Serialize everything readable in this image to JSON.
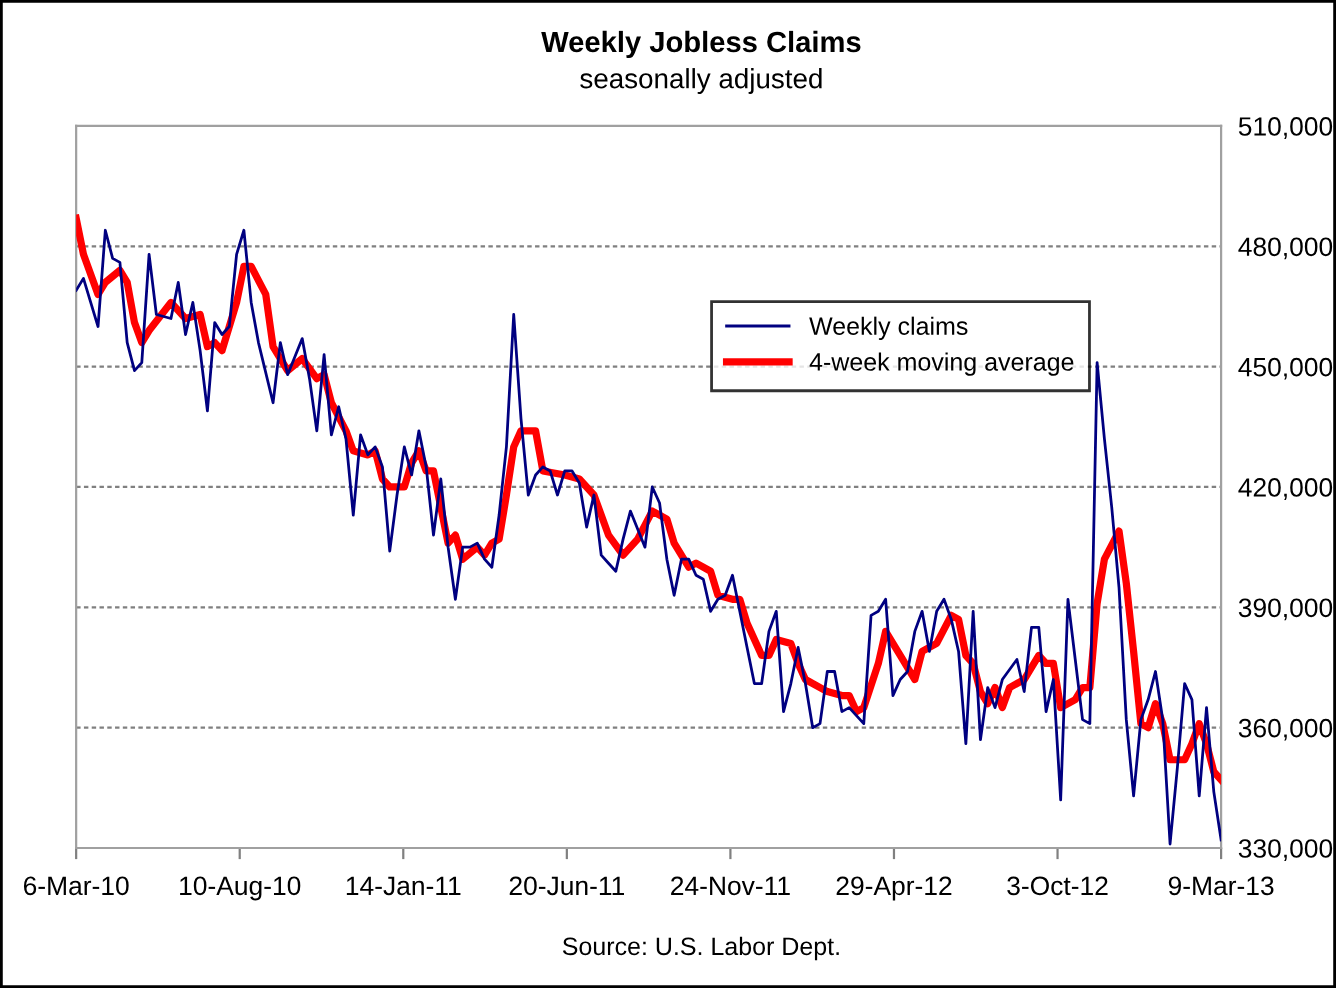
{
  "chart_data": {
    "type": "line",
    "title": "Weekly Jobless Claims",
    "subtitle": "seasonally adjusted",
    "annotations": [
      "Source: U.S. Labor Dept."
    ],
    "xlim": [
      "2010-03-06",
      "2013-03-09"
    ],
    "xticks": [
      {
        "value": "2010-03-06",
        "label": "6-Mar-10"
      },
      {
        "value": "2010-08-10",
        "label": "10-Aug-10"
      },
      {
        "value": "2011-01-14",
        "label": "14-Jan-11"
      },
      {
        "value": "2011-06-20",
        "label": "20-Jun-11"
      },
      {
        "value": "2011-11-24",
        "label": "24-Nov-11"
      },
      {
        "value": "2012-04-29",
        "label": "29-Apr-12"
      },
      {
        "value": "2012-10-03",
        "label": "3-Oct-12"
      },
      {
        "value": "2013-03-09",
        "label": "9-Mar-13"
      }
    ],
    "ylim": [
      330000,
      510000
    ],
    "yticks": [
      {
        "value": 330000,
        "label": "330,000"
      },
      {
        "value": 360000,
        "label": "360,000"
      },
      {
        "value": 390000,
        "label": "390,000"
      },
      {
        "value": 420000,
        "label": "420,000"
      },
      {
        "value": 450000,
        "label": "450,000"
      },
      {
        "value": 480000,
        "label": "480,000"
      },
      {
        "value": 510000,
        "label": "510,000"
      }
    ],
    "grid": "y",
    "legend": "center right",
    "marker": "none",
    "line_style": "solid",
    "series": [
      {
        "name": "Weekly claims",
        "color": "#000080",
        "x": [
          "2010-03-06",
          "2010-03-13",
          "2010-03-27",
          "2010-04-03",
          "2010-04-10",
          "2010-04-17",
          "2010-04-24",
          "2010-05-01",
          "2010-05-08",
          "2010-05-15",
          "2010-05-22",
          "2010-06-05",
          "2010-06-12",
          "2010-06-19",
          "2010-06-26",
          "2010-07-03",
          "2010-07-10",
          "2010-07-17",
          "2010-07-24",
          "2010-07-31",
          "2010-08-07",
          "2010-08-14",
          "2010-08-21",
          "2010-08-28",
          "2010-09-11",
          "2010-09-18",
          "2010-09-25",
          "2010-10-09",
          "2010-10-16",
          "2010-10-23",
          "2010-10-30",
          "2010-11-06",
          "2010-11-13",
          "2010-11-20",
          "2010-11-27",
          "2010-12-04",
          "2010-12-11",
          "2010-12-18",
          "2010-12-25",
          "2011-01-01",
          "2011-01-08",
          "2011-01-15",
          "2011-01-22",
          "2011-01-29",
          "2011-02-05",
          "2011-02-12",
          "2011-02-19",
          "2011-02-26",
          "2011-03-05",
          "2011-03-12",
          "2011-03-19",
          "2011-03-26",
          "2011-04-02",
          "2011-04-09",
          "2011-04-16",
          "2011-04-23",
          "2011-04-30",
          "2011-05-07",
          "2011-05-14",
          "2011-05-21",
          "2011-05-28",
          "2011-06-04",
          "2011-06-11",
          "2011-06-18",
          "2011-06-25",
          "2011-07-02",
          "2011-07-09",
          "2011-07-16",
          "2011-07-23",
          "2011-07-30",
          "2011-08-06",
          "2011-08-13",
          "2011-08-20",
          "2011-09-03",
          "2011-09-10",
          "2011-09-17",
          "2011-09-24",
          "2011-10-01",
          "2011-10-08",
          "2011-10-15",
          "2011-10-22",
          "2011-10-29",
          "2011-11-05",
          "2011-11-12",
          "2011-11-19",
          "2011-11-26",
          "2011-12-03",
          "2011-12-10",
          "2011-12-17",
          "2011-12-24",
          "2011-12-31",
          "2012-01-07",
          "2012-01-14",
          "2012-01-21",
          "2012-01-28",
          "2012-02-04",
          "2012-02-11",
          "2012-02-18",
          "2012-02-25",
          "2012-03-03",
          "2012-03-10",
          "2012-03-17",
          "2012-03-24",
          "2012-03-31",
          "2012-04-07",
          "2012-04-14",
          "2012-04-21",
          "2012-04-28",
          "2012-05-05",
          "2012-05-12",
          "2012-05-19",
          "2012-05-26",
          "2012-06-02",
          "2012-06-09",
          "2012-06-16",
          "2012-06-23",
          "2012-06-30",
          "2012-07-07",
          "2012-07-14",
          "2012-07-21",
          "2012-07-28",
          "2012-08-04",
          "2012-08-11",
          "2012-08-25",
          "2012-09-01",
          "2012-09-08",
          "2012-09-15",
          "2012-09-22",
          "2012-09-29",
          "2012-10-06",
          "2012-10-13",
          "2012-10-20",
          "2012-10-27",
          "2012-11-03",
          "2012-11-10",
          "2012-11-17",
          "2012-11-24",
          "2012-12-01",
          "2012-12-08",
          "2012-12-15",
          "2012-12-22",
          "2012-12-29",
          "2013-01-05",
          "2013-01-12",
          "2013-01-19",
          "2013-01-26",
          "2013-02-02",
          "2013-02-09",
          "2013-02-16",
          "2013-02-23",
          "2013-03-02",
          "2013-03-09"
        ],
        "values": [
          469000,
          472000,
          460000,
          484000,
          477000,
          476000,
          456000,
          449000,
          451000,
          478000,
          463000,
          462000,
          471000,
          458000,
          466000,
          454000,
          439000,
          461000,
          458000,
          460000,
          478000,
          484000,
          466000,
          456000,
          441000,
          456000,
          448000,
          457000,
          447000,
          434000,
          453000,
          433000,
          440000,
          432000,
          413000,
          433000,
          428000,
          430000,
          425000,
          404000,
          418000,
          430000,
          423000,
          434000,
          425000,
          408000,
          422000,
          405000,
          392000,
          405000,
          405000,
          406000,
          402000,
          400000,
          413000,
          430000,
          463000,
          437000,
          418000,
          423000,
          425000,
          424000,
          418000,
          424000,
          424000,
          421000,
          410000,
          418000,
          403000,
          401000,
          399000,
          407000,
          414000,
          405000,
          420000,
          416000,
          402000,
          393000,
          402000,
          402000,
          398000,
          397000,
          389000,
          392000,
          393000,
          398000,
          389000,
          380000,
          371000,
          371000,
          384000,
          389000,
          364000,
          371000,
          380000,
          371000,
          360000,
          361000,
          374000,
          374000,
          364000,
          365000,
          363000,
          361000,
          388000,
          389000,
          392000,
          368000,
          372000,
          374000,
          384000,
          389000,
          379000,
          389000,
          392000,
          387000,
          379000,
          356000,
          389000,
          357000,
          370000,
          365000,
          372000,
          377000,
          369000,
          385000,
          385000,
          364000,
          372000,
          342000,
          392000,
          377000,
          362000,
          361000,
          451000,
          432000,
          415000,
          395000,
          362000,
          343000,
          362000,
          367000,
          374000,
          362000,
          331000,
          350000,
          371000,
          367000,
          343000,
          365000,
          344000,
          332000
        ]
      },
      {
        "name": "4-week moving average",
        "color": "#ff0000",
        "x": [
          "2010-03-06",
          "2010-03-13",
          "2010-03-27",
          "2010-04-03",
          "2010-04-17",
          "2010-04-24",
          "2010-05-01",
          "2010-05-08",
          "2010-05-15",
          "2010-06-05",
          "2010-06-19",
          "2010-07-03",
          "2010-07-10",
          "2010-07-17",
          "2010-07-24",
          "2010-08-07",
          "2010-08-14",
          "2010-08-21",
          "2010-09-04",
          "2010-09-11",
          "2010-09-25",
          "2010-10-09",
          "2010-10-23",
          "2010-10-30",
          "2010-11-06",
          "2010-11-20",
          "2010-11-27",
          "2010-12-11",
          "2010-12-18",
          "2010-12-25",
          "2011-01-01",
          "2011-01-15",
          "2011-01-22",
          "2011-01-29",
          "2011-02-05",
          "2011-02-12",
          "2011-02-19",
          "2011-02-26",
          "2011-03-05",
          "2011-03-12",
          "2011-03-26",
          "2011-04-02",
          "2011-04-09",
          "2011-04-16",
          "2011-04-23",
          "2011-04-30",
          "2011-05-07",
          "2011-05-21",
          "2011-05-28",
          "2011-06-18",
          "2011-07-02",
          "2011-07-16",
          "2011-07-30",
          "2011-08-13",
          "2011-08-27",
          "2011-09-10",
          "2011-09-24",
          "2011-10-01",
          "2011-10-15",
          "2011-10-22",
          "2011-11-05",
          "2011-11-12",
          "2011-11-26",
          "2011-12-03",
          "2011-12-10",
          "2011-12-24",
          "2011-12-31",
          "2012-01-07",
          "2012-01-21",
          "2012-01-28",
          "2012-02-04",
          "2012-02-25",
          "2012-03-10",
          "2012-03-17",
          "2012-03-24",
          "2012-03-31",
          "2012-04-14",
          "2012-04-21",
          "2012-05-05",
          "2012-05-19",
          "2012-05-26",
          "2012-06-09",
          "2012-06-23",
          "2012-06-30",
          "2012-07-07",
          "2012-07-14",
          "2012-07-21",
          "2012-07-28",
          "2012-08-04",
          "2012-08-11",
          "2012-08-18",
          "2012-09-01",
          "2012-09-15",
          "2012-09-22",
          "2012-09-29",
          "2012-10-06",
          "2012-10-20",
          "2012-10-27",
          "2012-11-03",
          "2012-11-10",
          "2012-11-17",
          "2012-12-01",
          "2012-12-08",
          "2012-12-15",
          "2012-12-22",
          "2012-12-29",
          "2013-01-05",
          "2013-01-12",
          "2013-01-19",
          "2013-02-02",
          "2013-02-09",
          "2013-02-16",
          "2013-02-23",
          "2013-03-02",
          "2013-03-09"
        ],
        "values": [
          487000,
          478000,
          468000,
          471000,
          474000,
          471000,
          461000,
          456000,
          459000,
          466000,
          462000,
          463000,
          455000,
          456000,
          454000,
          466000,
          475000,
          475000,
          468000,
          455000,
          449000,
          452000,
          447000,
          448000,
          441000,
          434000,
          429000,
          428000,
          429000,
          422000,
          420000,
          420000,
          426000,
          429000,
          424000,
          424000,
          415000,
          406000,
          408000,
          402000,
          405000,
          403000,
          406000,
          407000,
          418000,
          430000,
          434000,
          434000,
          424000,
          423000,
          422000,
          418000,
          408000,
          403000,
          407000,
          414000,
          412000,
          406000,
          400000,
          401000,
          399000,
          393000,
          392000,
          392000,
          386000,
          378000,
          378000,
          382000,
          381000,
          376000,
          372000,
          369000,
          368000,
          368000,
          364000,
          365000,
          376000,
          384000,
          378000,
          372000,
          379000,
          381000,
          388000,
          387000,
          378000,
          376000,
          369000,
          366000,
          370000,
          365000,
          370000,
          372000,
          378000,
          376000,
          376000,
          365000,
          367000,
          370000,
          370000,
          391000,
          402000,
          409000,
          396000,
          379000,
          361000,
          360000,
          366000,
          361000,
          352000,
          352000,
          356000,
          361000,
          356000,
          349000,
          347000
        ]
      }
    ]
  }
}
